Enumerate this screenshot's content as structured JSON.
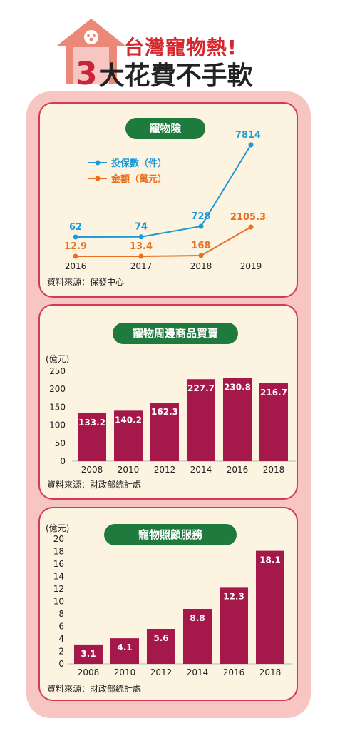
{
  "header": {
    "line1": "台灣寵物熱!",
    "line2_num": "3",
    "line2_text": "大花費不手軟"
  },
  "colors": {
    "house": "#ec8877",
    "panel_border": "#d23c53",
    "pill": "#1f7a3d",
    "bar": "#a5194a",
    "count_line": "#1a9ad6",
    "amount_line": "#e8711f"
  },
  "chart_data": [
    {
      "type": "line",
      "title": "寵物險",
      "x": [
        "2016",
        "2017",
        "2018",
        "2019"
      ],
      "series": [
        {
          "name": "投保數（件）",
          "values": [
            62,
            74,
            728,
            7814
          ],
          "labels": [
            "62",
            "74",
            "728",
            "7814"
          ]
        },
        {
          "name": "金額（萬元）",
          "values": [
            12.9,
            13.4,
            168,
            2105.3
          ],
          "labels": [
            "12.9",
            "13.4",
            "168",
            "2105.3"
          ]
        }
      ],
      "legend": "top-left",
      "grid": false,
      "source": "資料來源：保發中心"
    },
    {
      "type": "bar",
      "title": "寵物周邊商品買賣",
      "unit": "(億元)",
      "categories": [
        "2008",
        "2010",
        "2012",
        "2014",
        "2016",
        "2018"
      ],
      "values": [
        133.2,
        140.2,
        162.3,
        227.7,
        230.8,
        216.7
      ],
      "ylim": [
        0,
        250
      ],
      "yticks": [
        "0",
        "50",
        "100",
        "150",
        "200",
        "250"
      ],
      "grid": false,
      "source": "資料來源：財政部統計處"
    },
    {
      "type": "bar",
      "title": "寵物照顧服務",
      "unit": "(億元)",
      "categories": [
        "2008",
        "2010",
        "2012",
        "2014",
        "2016",
        "2018"
      ],
      "values": [
        3.1,
        4.1,
        5.6,
        8.8,
        12.3,
        18.1
      ],
      "ylim": [
        0,
        20
      ],
      "yticks": [
        "0",
        "2",
        "4",
        "6",
        "8",
        "10",
        "12",
        "14",
        "16",
        "18",
        "20"
      ],
      "grid": false,
      "source": "資料來源：財政部統計處"
    }
  ]
}
